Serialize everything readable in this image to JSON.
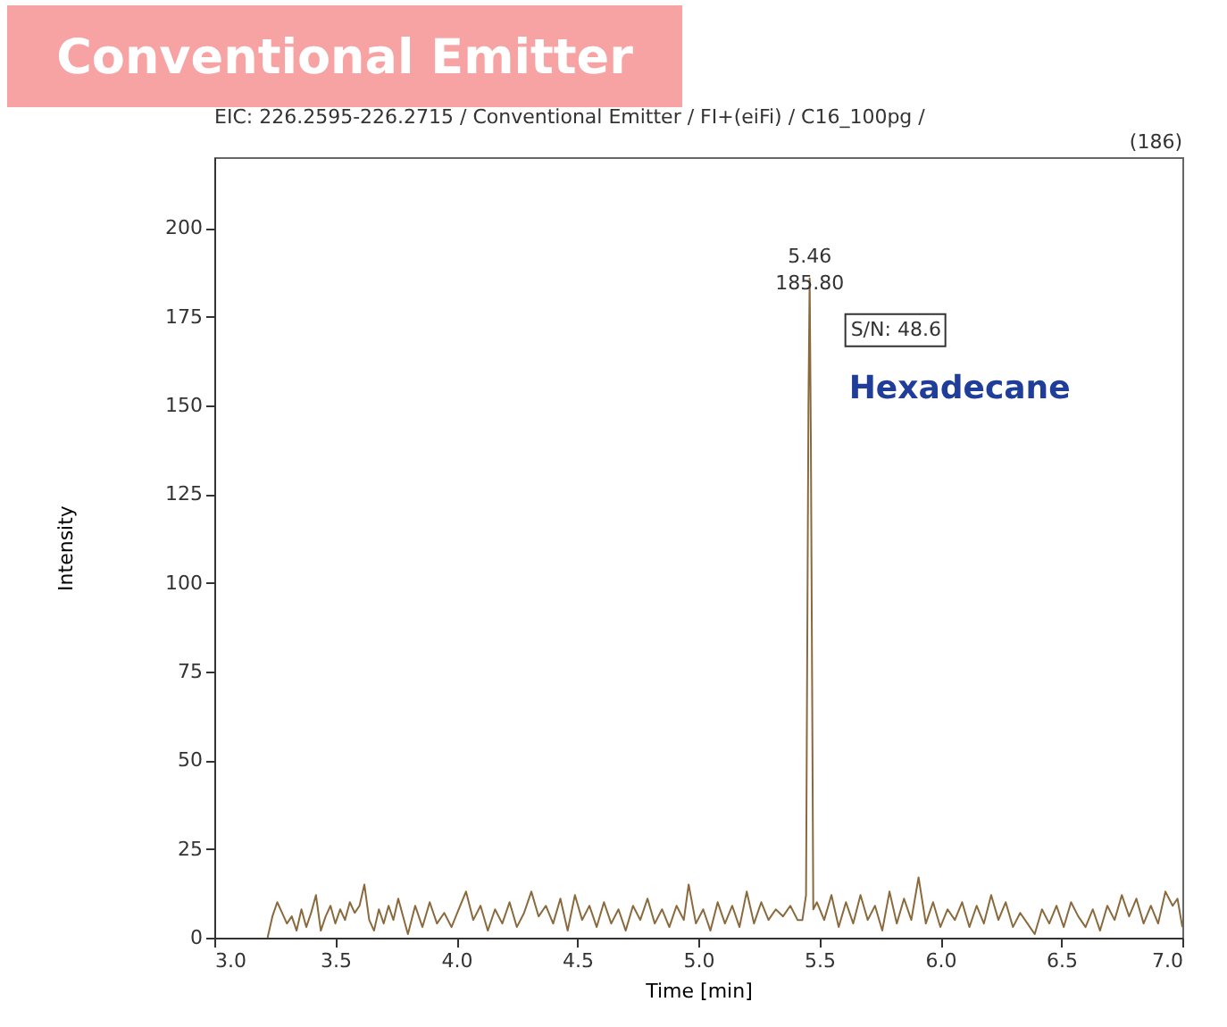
{
  "chart_data": {
    "type": "line",
    "title": "Conventional Emitter",
    "subtitle": "EIC: 226.2595-226.2715 / Conventional Emitter / FI+(eiFi) / C16_100pg /",
    "xlabel": "Time [min]",
    "ylabel": "Intensity",
    "x": [
      3.22,
      3.24,
      3.26,
      3.28,
      3.3,
      3.32,
      3.34,
      3.36,
      3.38,
      3.4,
      3.42,
      3.44,
      3.46,
      3.48,
      3.5,
      3.52,
      3.54,
      3.56,
      3.58,
      3.6,
      3.62,
      3.64,
      3.66,
      3.68,
      3.7,
      3.72,
      3.74,
      3.76,
      3.78,
      3.8,
      3.83,
      3.86,
      3.89,
      3.92,
      3.95,
      3.98,
      4.01,
      4.04,
      4.07,
      4.1,
      4.13,
      4.16,
      4.19,
      4.22,
      4.25,
      4.28,
      4.31,
      4.34,
      4.37,
      4.4,
      4.43,
      4.46,
      4.49,
      4.52,
      4.55,
      4.58,
      4.61,
      4.64,
      4.67,
      4.7,
      4.73,
      4.76,
      4.79,
      4.82,
      4.85,
      4.88,
      4.91,
      4.94,
      4.96,
      4.99,
      5.02,
      5.05,
      5.08,
      5.11,
      5.14,
      5.17,
      5.2,
      5.23,
      5.26,
      5.29,
      5.32,
      5.35,
      5.38,
      5.41,
      5.43,
      5.445,
      5.455,
      5.46,
      5.465,
      5.475,
      5.49,
      5.52,
      5.55,
      5.58,
      5.61,
      5.64,
      5.67,
      5.7,
      5.73,
      5.76,
      5.79,
      5.82,
      5.85,
      5.88,
      5.91,
      5.94,
      5.97,
      6.0,
      6.03,
      6.06,
      6.09,
      6.12,
      6.15,
      6.18,
      6.21,
      6.24,
      6.27,
      6.3,
      6.33,
      6.36,
      6.39,
      6.42,
      6.45,
      6.48,
      6.51,
      6.54,
      6.57,
      6.6,
      6.63,
      6.66,
      6.69,
      6.72,
      6.75,
      6.78,
      6.81,
      6.84,
      6.87,
      6.9,
      6.93,
      6.96,
      6.98,
      7.0
    ],
    "series": [
      {
        "color": "#8a6a3c",
        "values": [
          0,
          6,
          10,
          7,
          4,
          6,
          2,
          8,
          3,
          7,
          12,
          2,
          6,
          9,
          4,
          8,
          5,
          10,
          7,
          9,
          15,
          5,
          2,
          8,
          4,
          9,
          5,
          11,
          6,
          1,
          9,
          3,
          10,
          4,
          7,
          3,
          8,
          13,
          5,
          9,
          2,
          8,
          4,
          10,
          3,
          7,
          13,
          6,
          9,
          4,
          11,
          2,
          12,
          5,
          9,
          3,
          10,
          4,
          8,
          2,
          9,
          5,
          11,
          4,
          8,
          3,
          9,
          5,
          15,
          4,
          8,
          2,
          10,
          4,
          9,
          3,
          13,
          4,
          10,
          5,
          8,
          6,
          9,
          5,
          5,
          12,
          150,
          185.8,
          140,
          8,
          10,
          5,
          12,
          3,
          10,
          4,
          12,
          5,
          9,
          2,
          13,
          4,
          11,
          5,
          17,
          4,
          10,
          3,
          8,
          5,
          10,
          3,
          9,
          4,
          12,
          5,
          10,
          3,
          7,
          4,
          1,
          8,
          4,
          9,
          3,
          10,
          6,
          3,
          8,
          2,
          9,
          5,
          12,
          6,
          11,
          4,
          9,
          4,
          13,
          9,
          11,
          3
        ]
      }
    ],
    "xlim": [
      3.0,
      7.0
    ],
    "xticks": [
      {
        "value": 3,
        "label": "3.0"
      },
      {
        "value": 3.5,
        "label": "3.5"
      },
      {
        "value": 4,
        "label": "4.0"
      },
      {
        "value": 4.5,
        "label": "4.5"
      },
      {
        "value": 5,
        "label": "5.0"
      },
      {
        "value": 5.5,
        "label": "5.5"
      },
      {
        "value": 6,
        "label": "6.0"
      },
      {
        "value": 6.5,
        "label": "6.5"
      },
      {
        "value": 7,
        "label": "7.0"
      }
    ],
    "ylim": [
      0,
      220
    ],
    "yticks": [
      0,
      25,
      50,
      75,
      100,
      125,
      150,
      175,
      200
    ],
    "annotations": [
      "(186)",
      {
        "text": "5.46\n185.80",
        "x": 5.46,
        "y": 185.8
      },
      "S/N: 48.6",
      "Hexadecane"
    ],
    "grid": false
  }
}
